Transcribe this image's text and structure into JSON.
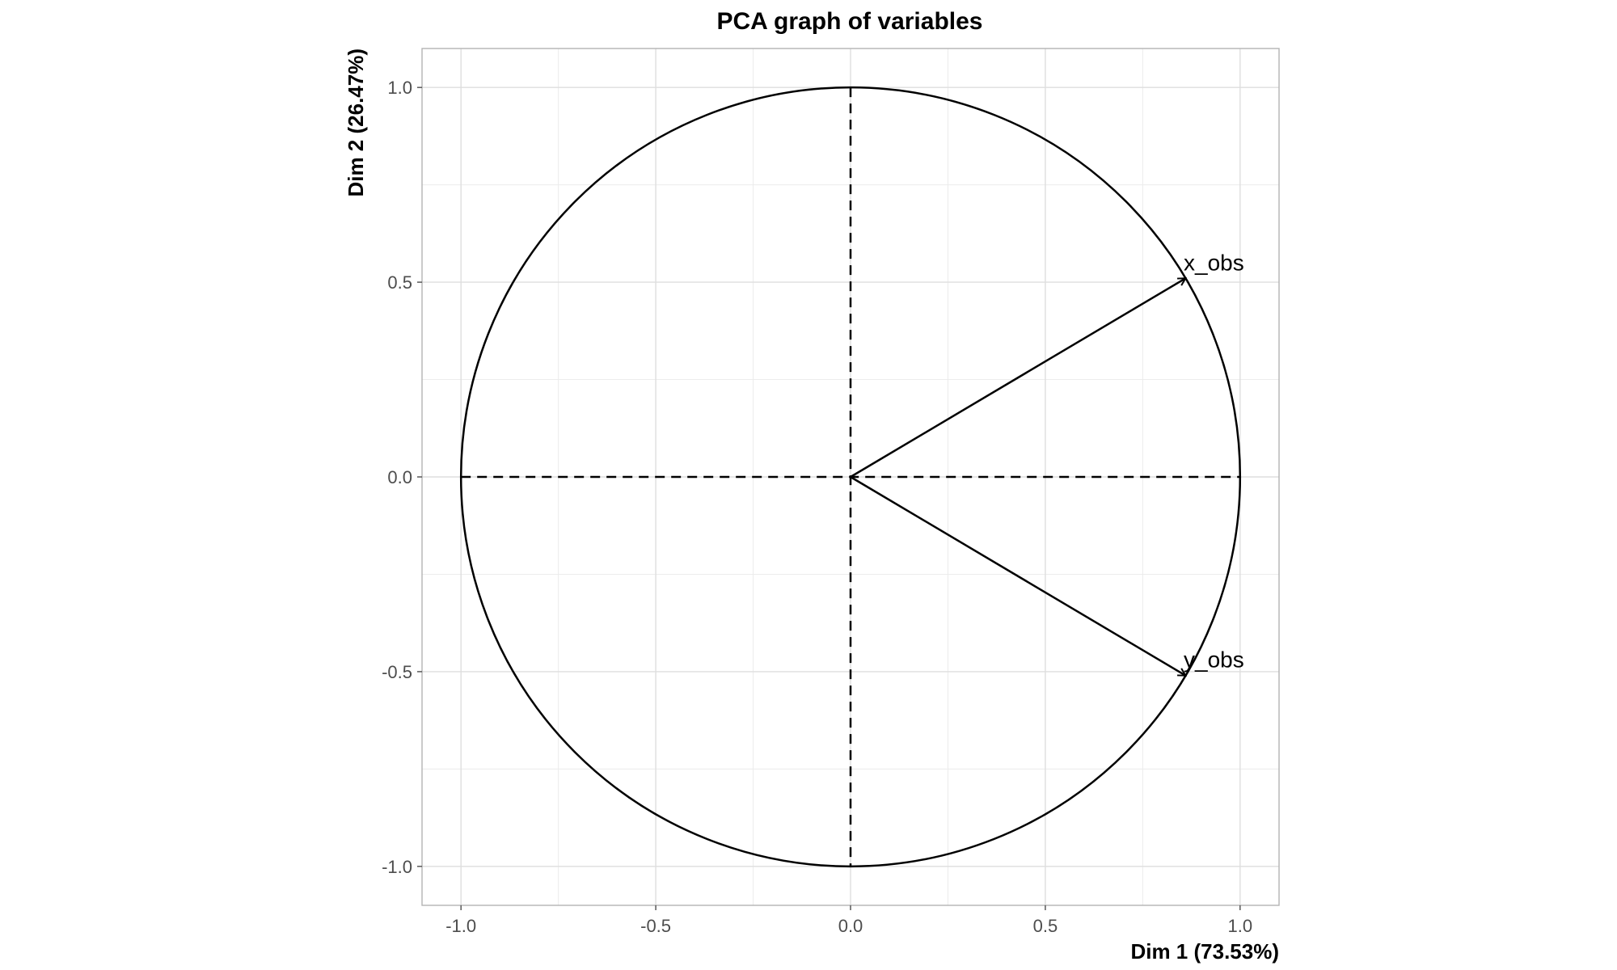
{
  "chart_data": {
    "type": "scatter",
    "title": "PCA graph of variables",
    "xlabel": "Dim 1 (73.53%)",
    "ylabel": "Dim 2 (26.47%)",
    "xlim": [
      -1.1,
      1.1
    ],
    "ylim": [
      -1.1,
      1.1
    ],
    "grid": true,
    "correlation_circle": true,
    "x_ticks": [
      -1.0,
      -0.5,
      0.0,
      0.5,
      1.0
    ],
    "y_ticks": [
      -1.0,
      -0.5,
      0.0,
      0.5,
      1.0
    ],
    "x_tick_labels": [
      "-1.0",
      "-0.5",
      "0.0",
      "0.5",
      "1.0"
    ],
    "y_tick_labels": [
      "-1.0",
      "-0.5",
      "0.0",
      "0.5",
      "1.0"
    ],
    "variables": [
      {
        "name": "x_obs",
        "x": 0.86,
        "y": 0.51
      },
      {
        "name": "y_obs",
        "x": 0.86,
        "y": -0.51
      }
    ],
    "colors": {
      "grid_major": "#dedede",
      "grid_minor": "#ececec",
      "panel_border": "#b3b3b3",
      "ink": "#000000",
      "tick_text": "#4d4d4d"
    }
  }
}
